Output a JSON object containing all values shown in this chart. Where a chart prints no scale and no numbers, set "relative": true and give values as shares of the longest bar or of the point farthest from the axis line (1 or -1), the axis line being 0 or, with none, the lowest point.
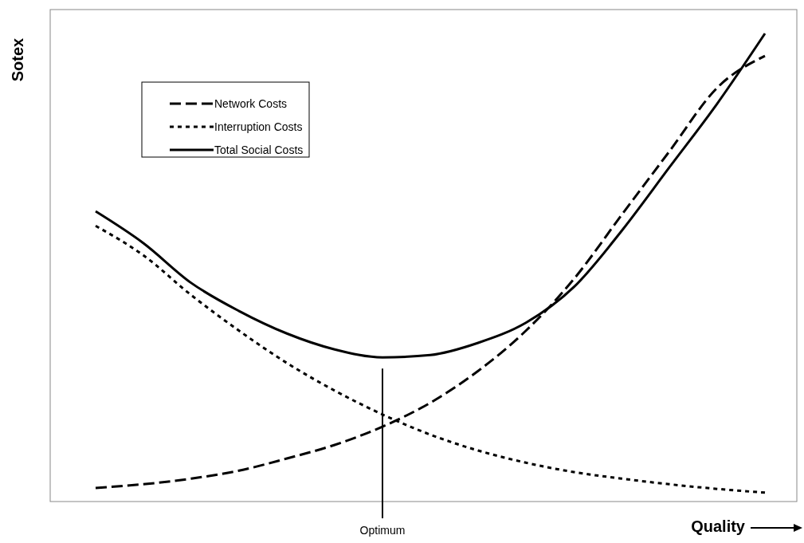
{
  "chart_data": {
    "type": "line",
    "relative": true,
    "xlabel": "Quality",
    "ylabel": "Sotex",
    "categories": [
      null,
      null,
      null,
      null,
      null,
      null,
      null,
      null,
      null,
      null,
      null,
      null,
      null,
      null,
      null
    ],
    "series": [
      {
        "name": "Network Costs",
        "color": "#000000",
        "line_style": "dashed",
        "values": [
          0.029,
          0.037,
          0.049,
          0.066,
          0.092,
          0.121,
          0.16,
          0.211,
          0.279,
          0.365,
          0.475,
          0.612,
          0.748,
          0.884,
          0.952
        ]
      },
      {
        "name": "Interruption Costs",
        "color": "#000000",
        "line_style": "dotted",
        "values": [
          0.589,
          0.526,
          0.441,
          0.365,
          0.296,
          0.237,
          0.186,
          0.143,
          0.109,
          0.083,
          0.063,
          0.049,
          0.037,
          0.027,
          0.019
        ]
      },
      {
        "name": "Total Social Costs",
        "color": "#000000",
        "line_style": "solid",
        "values": [
          0.62,
          0.552,
          0.467,
          0.407,
          0.359,
          0.325,
          0.308,
          0.313,
          0.339,
          0.382,
          0.458,
          0.578,
          0.714,
          0.85,
          1
        ]
      }
    ],
    "annotations": [
      "Optimum"
    ],
    "legend": "top left",
    "grid": false,
    "marker": "none"
  }
}
